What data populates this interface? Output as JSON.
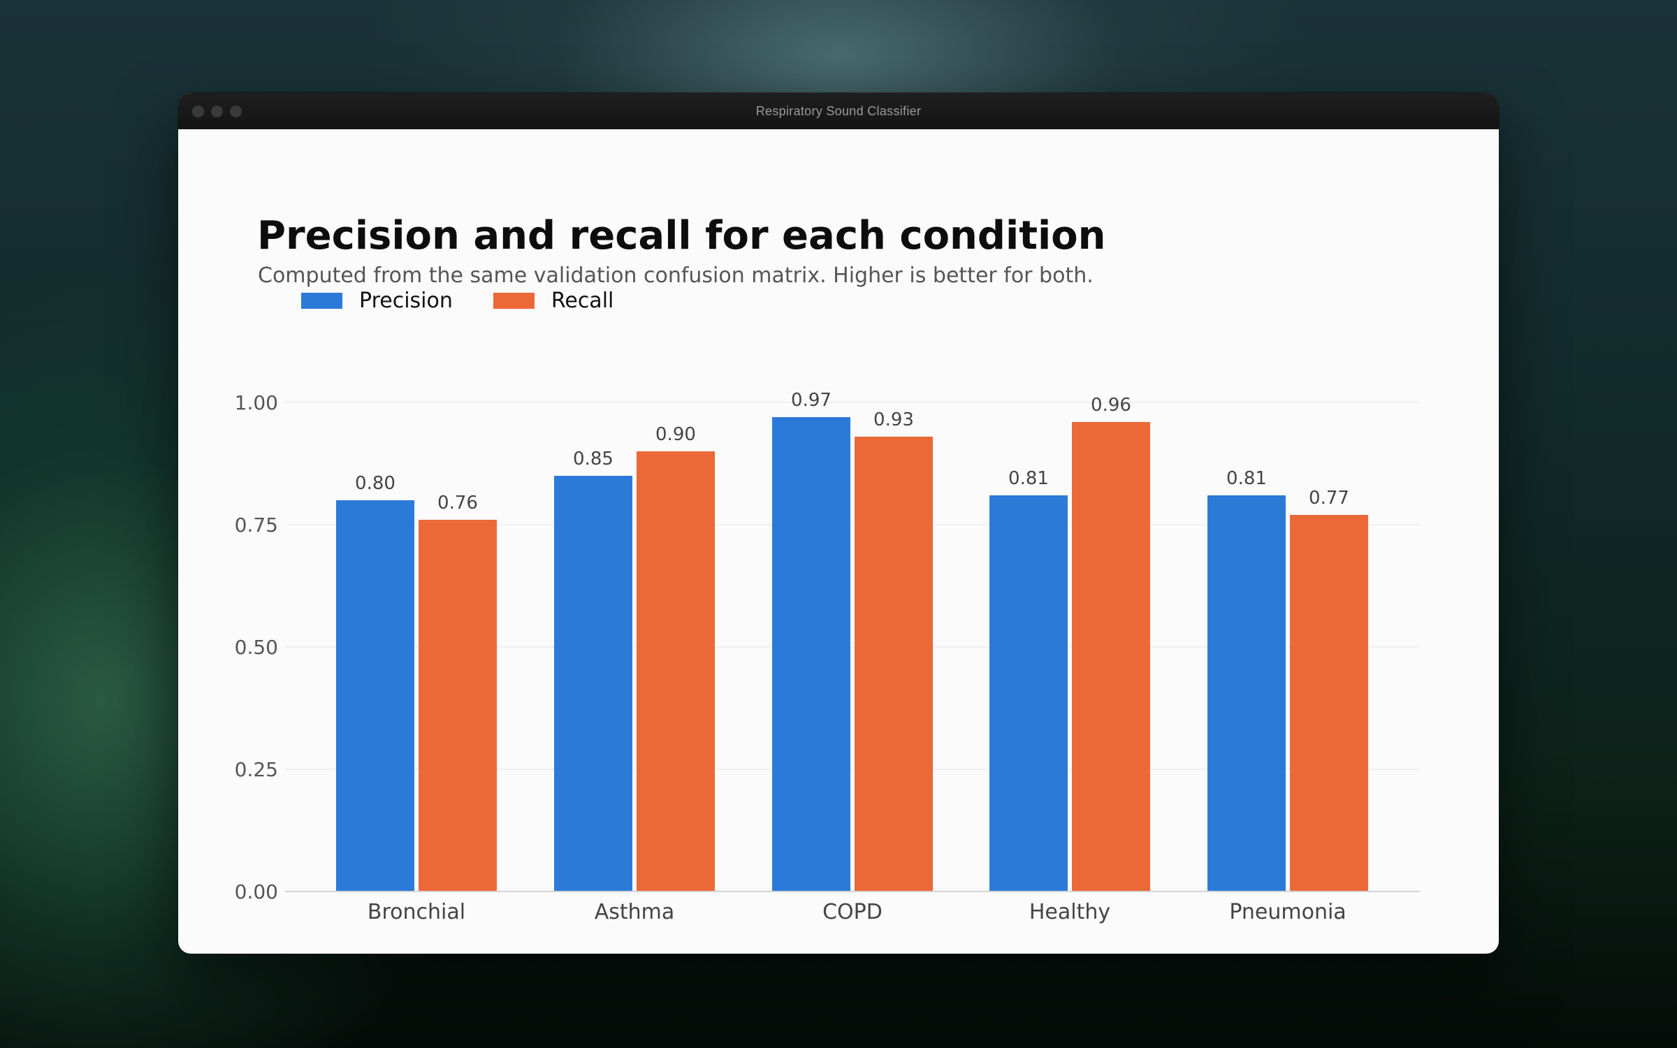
{
  "window": {
    "title": "Respiratory Sound Classifier"
  },
  "chart_data": {
    "type": "bar",
    "title": "Precision and recall for each condition",
    "subtitle": "Computed from the same validation confusion matrix. Higher is better for both.",
    "categories": [
      "Bronchial",
      "Asthma",
      "COPD",
      "Healthy",
      "Pneumonia"
    ],
    "series": [
      {
        "name": "Precision",
        "values": [
          0.8,
          0.85,
          0.97,
          0.81,
          0.81
        ],
        "labels": [
          "0.80",
          "0.85",
          "0.97",
          "0.81",
          "0.81"
        ],
        "color": "#2c7ad8"
      },
      {
        "name": "Recall",
        "values": [
          0.76,
          0.9,
          0.93,
          0.96,
          0.77
        ],
        "labels": [
          "0.76",
          "0.90",
          "0.93",
          "0.96",
          "0.77"
        ],
        "color": "#eb6837"
      }
    ],
    "ylim": [
      0,
      1
    ],
    "yticks": [
      "0.00",
      "0.25",
      "0.50",
      "0.75",
      "1.00"
    ],
    "xlabel": "",
    "ylabel": "",
    "grid": true,
    "legend_position": "top-left"
  }
}
